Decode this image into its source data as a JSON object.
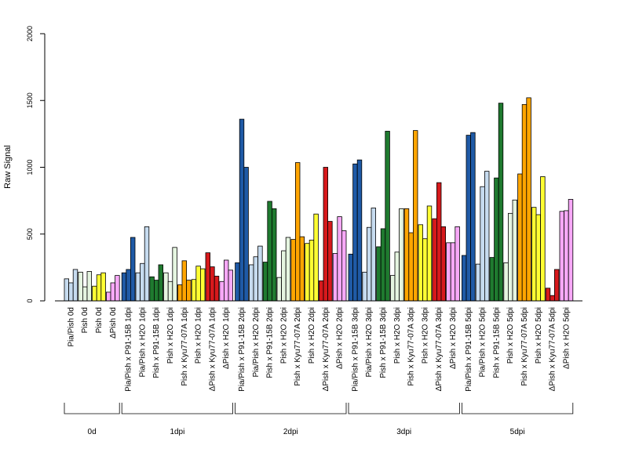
{
  "chart_data": {
    "type": "bar",
    "ylabel": "Raw Signal",
    "ylim": [
      0,
      2000
    ],
    "yticks": [
      0,
      500,
      1000,
      1500,
      2000
    ],
    "grid": false,
    "legend": "none",
    "colors": {
      "Pia/Pish": "#c6dbef",
      "Pish": "#d8efd2",
      "P91-15B": "#2a8a2a",
      "Pia/Pish P91-15B": "#1f5aa6",
      "Pish H2O": "#e5f5e0",
      "Kyu77-07A": "#ffa500",
      "Pish only": "#ffff33",
      "ΔPish Kyu77-07A": "#d7191c",
      "ΔPish": "#f7a8f7"
    },
    "groups": [
      {
        "name": "0d",
        "categories": [
          {
            "label": "Pia/Pish 0d",
            "color": "#c6dbef",
            "values": [
              165,
              135,
              235
            ]
          },
          {
            "label": "Pish 0d",
            "color": "#e5f5e0",
            "values": [
              215,
              105,
              220
            ]
          },
          {
            "label": "Pish 0d",
            "color": "#ffff33",
            "values": [
              110,
              195,
              210
            ]
          },
          {
            "label": "ΔPish 0d",
            "color": "#f7a8f7",
            "values": [
              65,
              135,
              190
            ]
          }
        ]
      },
      {
        "name": "1dpi",
        "categories": [
          {
            "label": "Pia/Pish x P91-15B 1dpi",
            "color": "#1f5aa6",
            "values": [
              210,
              235,
              475
            ]
          },
          {
            "label": "Pia/Pish x H2O 1dpi",
            "color": "#c6dbef",
            "values": [
              210,
              280,
              555
            ]
          },
          {
            "label": "Pish x P91-15B 1dpi",
            "color": "#1f7a2f",
            "values": [
              180,
              155,
              270
            ]
          },
          {
            "label": "Pish x H2O 1dpi",
            "color": "#e5f5e0",
            "values": [
              210,
              145,
              400
            ]
          },
          {
            "label": "Pish x Kyu77-07A 1dpi",
            "color": "#ffa500",
            "values": [
              120,
              300,
              155
            ]
          },
          {
            "label": "Pish x H2O 1dpi",
            "color": "#ffff33",
            "values": [
              160,
              260,
              240
            ]
          },
          {
            "label": "ΔPish x Kyu77-07A 1dpi",
            "color": "#d7191c",
            "values": [
              360,
              255,
              185
            ]
          },
          {
            "label": "ΔPish x H2O 1dpi",
            "color": "#f7a8f7",
            "values": [
              145,
              305,
              230
            ]
          }
        ]
      },
      {
        "name": "2dpi",
        "categories": [
          {
            "label": "Pia/Pish x P91-15B 2dpi",
            "color": "#1f5aa6",
            "values": [
              285,
              1360,
              1000
            ]
          },
          {
            "label": "Pia/Pish x H2O 2dpi",
            "color": "#c6dbef",
            "values": [
              270,
              330,
              410
            ]
          },
          {
            "label": "Pish x P91-15B 2dpi",
            "color": "#1f7a2f",
            "values": [
              290,
              745,
              690
            ]
          },
          {
            "label": "Pish x H2O 2dpi",
            "color": "#e5f5e0",
            "values": [
              175,
              375,
              475
            ]
          },
          {
            "label": "Pish x Kyu77-07A 2dpi",
            "color": "#ffa500",
            "values": [
              460,
              1035,
              480
            ]
          },
          {
            "label": "Pish x H2O 2dpi",
            "color": "#ffff33",
            "values": [
              430,
              455,
              650
            ]
          },
          {
            "label": "ΔPish x Kyu77-07A 2dpi",
            "color": "#d7191c",
            "values": [
              150,
              1000,
              595
            ]
          },
          {
            "label": "ΔPish x H2O 2dpi",
            "color": "#f7a8f7",
            "values": [
              355,
              630,
              525
            ]
          }
        ]
      },
      {
        "name": "3dpi",
        "categories": [
          {
            "label": "Pia/Pish x P91-15B 3dpi",
            "color": "#1f5aa6",
            "values": [
              350,
              1025,
              1055
            ]
          },
          {
            "label": "Pia/Pish x H2O 3dpi",
            "color": "#c6dbef",
            "values": [
              215,
              550,
              695
            ]
          },
          {
            "label": "Pish x P91-15B 3dpi",
            "color": "#1f7a2f",
            "values": [
              405,
              540,
              1270
            ]
          },
          {
            "label": "Pish x H2O 3dpi",
            "color": "#e5f5e0",
            "values": [
              190,
              365,
              690
            ]
          },
          {
            "label": "Pish x Kyu77-07A 3dpi",
            "color": "#ffa500",
            "values": [
              690,
              510,
              1275
            ]
          },
          {
            "label": "Pish x H2O 3dpi",
            "color": "#ffff33",
            "values": [
              570,
              465,
              710
            ]
          },
          {
            "label": "ΔPish x Kyu77-07A 3dpi",
            "color": "#d7191c",
            "values": [
              615,
              885,
              555
            ]
          },
          {
            "label": "ΔPish x H2O 3dpi",
            "color": "#f7a8f7",
            "values": [
              435,
              435,
              555
            ]
          }
        ]
      },
      {
        "name": "5dpi",
        "categories": [
          {
            "label": "Pia/Pish x P91-15B 5dpi",
            "color": "#1f5aa6",
            "values": [
              340,
              1240,
              1260
            ]
          },
          {
            "label": "Pia/Pish x H2O 5dpi",
            "color": "#c6dbef",
            "values": [
              275,
              855,
              970
            ]
          },
          {
            "label": "Pish x P91-15B 5dpi",
            "color": "#1f7a2f",
            "values": [
              325,
              920,
              1480
            ]
          },
          {
            "label": "Pish x H2O 5dpi",
            "color": "#e5f5e0",
            "values": [
              285,
              655,
              755
            ]
          },
          {
            "label": "Pish x Kyu77-07A 5dpi",
            "color": "#ffa500",
            "values": [
              950,
              1470,
              1520
            ]
          },
          {
            "label": "Pish x H2O 5dpi",
            "color": "#ffff33",
            "values": [
              700,
              645,
              930
            ]
          },
          {
            "label": "ΔPish x Kyu77-07A 5dpi",
            "color": "#d7191c",
            "values": [
              95,
              40,
              235
            ]
          },
          {
            "label": "ΔPish x H2O 5dpi",
            "color": "#f7a8f7",
            "values": [
              670,
              675,
              760
            ]
          }
        ]
      }
    ]
  }
}
